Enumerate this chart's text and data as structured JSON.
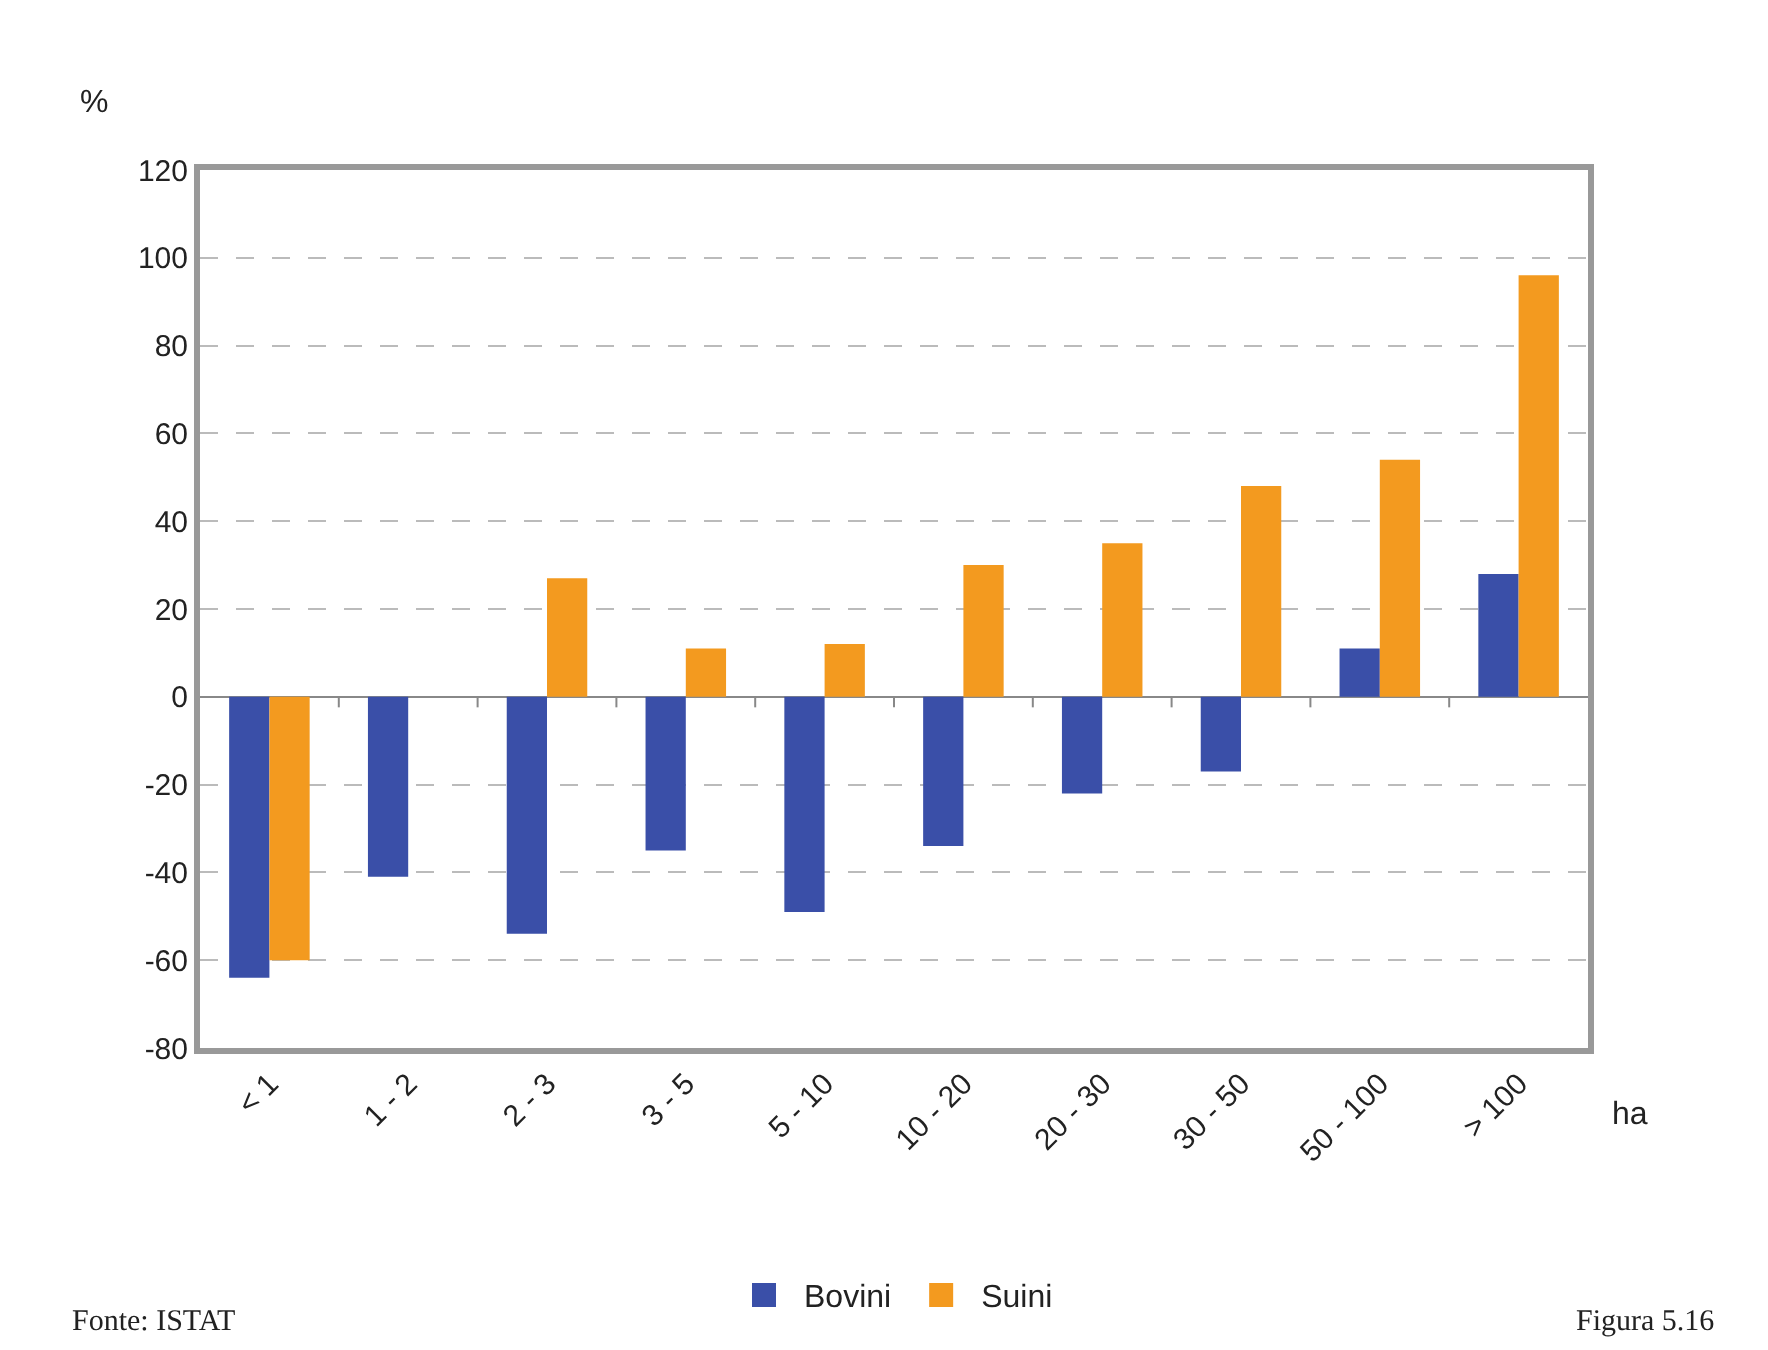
{
  "chart_data": {
    "type": "bar",
    "xlabel": "ha",
    "ylabel": "%",
    "categories": [
      "< 1",
      "1 - 2",
      "2 - 3",
      "3 - 5",
      "5 - 10",
      "10 - 20",
      "20 - 30",
      "30 - 50",
      "50 - 100",
      "> 100"
    ],
    "series": [
      {
        "name": "Bovini",
        "color": "#3a4fa8",
        "values": [
          -64,
          -41,
          -54,
          -35,
          -49,
          -34,
          -22,
          -17,
          11,
          28
        ]
      },
      {
        "name": "Suini",
        "color": "#f39a1f",
        "values": [
          -60,
          0,
          27,
          11,
          12,
          30,
          35,
          48,
          54,
          96
        ]
      }
    ],
    "ylim": [
      -80,
      120
    ],
    "yticks": [
      -80,
      -60,
      -40,
      -20,
      0,
      20,
      40,
      60,
      80,
      100,
      120
    ],
    "grid": "y",
    "legend": "bottom",
    "annotations": [
      "Fonte: ISTAT",
      "Figura 5.16"
    ]
  }
}
